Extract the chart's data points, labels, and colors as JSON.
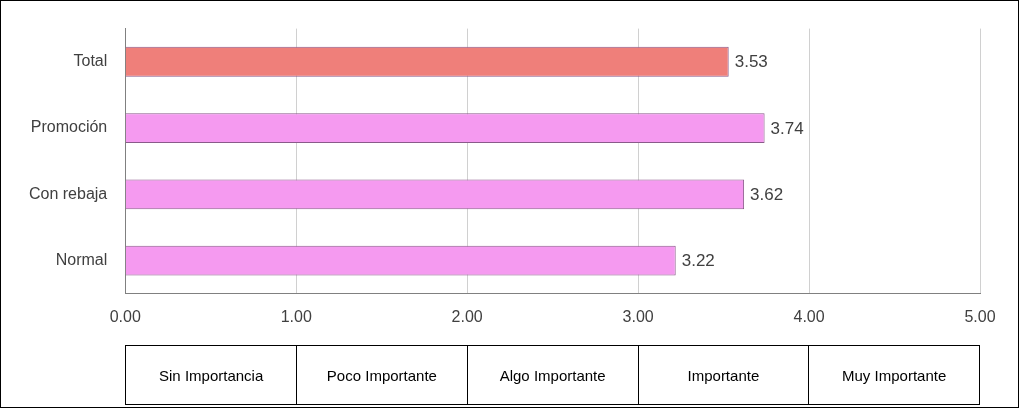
{
  "chart_data": {
    "type": "bar",
    "orientation": "horizontal",
    "categories": [
      "Total",
      "Promoción",
      "Con rebaja",
      "Normal"
    ],
    "values": [
      3.53,
      3.74,
      3.62,
      3.22
    ],
    "colors": [
      "#ef7f7a",
      "#f59af0",
      "#f59af0",
      "#f59af0"
    ],
    "xlim": [
      0,
      5
    ],
    "xticks": [
      {
        "value": 0,
        "label": "0.00"
      },
      {
        "value": 1,
        "label": "1.00"
      },
      {
        "value": 2,
        "label": "2.00"
      },
      {
        "value": 3,
        "label": "3.00"
      },
      {
        "value": 4,
        "label": "4.00"
      },
      {
        "value": 5,
        "label": "5.00"
      }
    ],
    "grid": "x",
    "data_labels": true,
    "legend": false,
    "annotations": [
      "Sin Importancia",
      "Poco Importante",
      "Algo Importante",
      "Importante",
      "Muy Importante"
    ]
  }
}
